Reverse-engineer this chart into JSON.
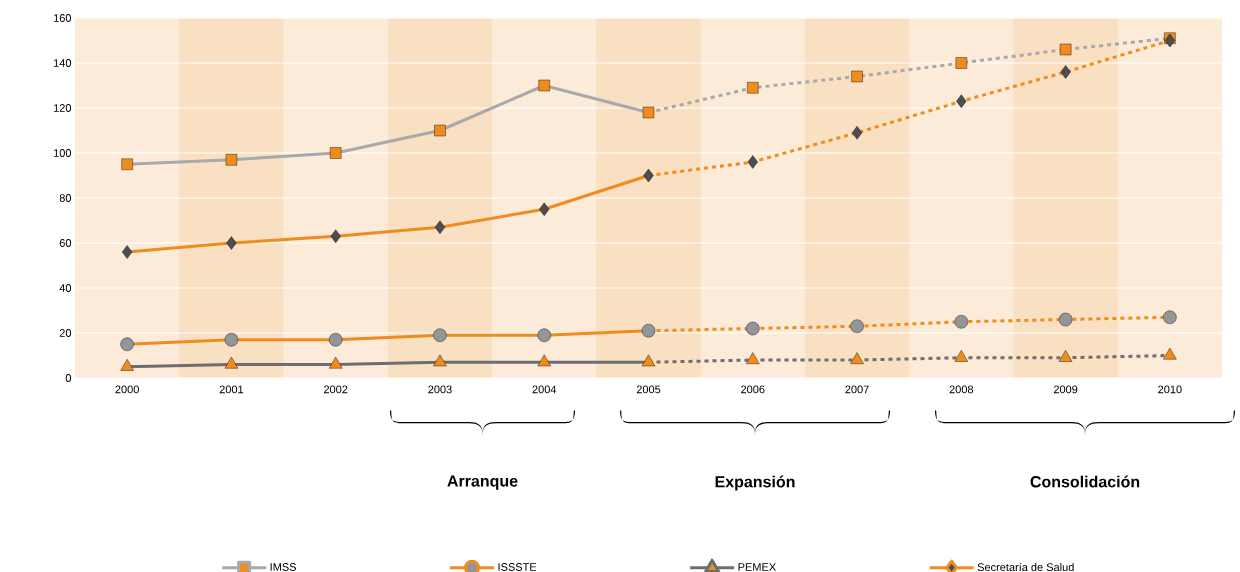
{
  "chart_data": {
    "type": "line",
    "x": [
      2000,
      2001,
      2002,
      2003,
      2004,
      2005,
      2006,
      2007,
      2008,
      2009,
      2010
    ],
    "xlim": [
      1999.5,
      2010.5
    ],
    "xticks": [
      2000,
      2001,
      2002,
      2003,
      2004,
      2005,
      2006,
      2007,
      2008,
      2009,
      2010
    ],
    "ylim": [
      0,
      160
    ],
    "yticks": [
      0,
      20,
      40,
      60,
      80,
      100,
      120,
      140,
      160
    ],
    "grid": "y",
    "legend": "bottom",
    "bands": [
      {
        "axis": "x",
        "from": 2000.5,
        "to": 2001.5,
        "color": "#fae0c2"
      },
      {
        "axis": "x",
        "from": 2002.5,
        "to": 2003.5,
        "color": "#fae0c2"
      },
      {
        "axis": "x",
        "from": 2004.5,
        "to": 2005.5,
        "color": "#fae0c2"
      },
      {
        "axis": "x",
        "from": 2006.5,
        "to": 2007.5,
        "color": "#fae0c2"
      },
      {
        "axis": "x",
        "from": 2008.5,
        "to": 2009.5,
        "color": "#fae0c2"
      }
    ],
    "annotations": [
      "Arranque",
      "Expansión",
      "Consolidación"
    ],
    "series": [
      {
        "name": "IMSS",
        "color": "#a7a9ac",
        "marker": "square",
        "line_style": "solid",
        "values": [
          95,
          97,
          100,
          110,
          130,
          118,
          null,
          null,
          null,
          null,
          null
        ],
        "colors": [
          "#f08c1e",
          "#f08c1e",
          "#f08c1e",
          "#f08c1e",
          "#f08c1e",
          "#f08c1e",
          null,
          null,
          null,
          null,
          null
        ]
      },
      {
        "color": "#a7a9ac",
        "marker": "square",
        "line_style": "dotted",
        "values": [
          null,
          null,
          null,
          null,
          null,
          118,
          129,
          134,
          140,
          146,
          151
        ],
        "colors": [
          null,
          null,
          null,
          null,
          null,
          null,
          "#f08c1e",
          "#f08c1e",
          "#f08c1e",
          "#f08c1e",
          "#f08c1e"
        ]
      },
      {
        "name": "ISSSTE",
        "color": "#f08c1e",
        "marker": "circle",
        "line_style": "solid",
        "values": [
          15,
          17,
          17,
          19,
          19,
          21,
          null,
          null,
          null,
          null,
          null
        ],
        "colors": [
          "#939598",
          "#939598",
          "#939598",
          "#939598",
          "#939598",
          "#939598",
          null,
          null,
          null,
          null,
          null
        ]
      },
      {
        "color": "#f08c1e",
        "marker": "circle",
        "line_style": "dotted",
        "values": [
          null,
          null,
          null,
          null,
          null,
          21,
          22,
          23,
          25,
          26,
          27
        ],
        "colors": [
          null,
          null,
          null,
          null,
          null,
          null,
          "#939598",
          "#939598",
          "#939598",
          "#939598",
          "#939598"
        ]
      },
      {
        "name": "PEMEX",
        "color": "#6d6e71",
        "marker": "triangle",
        "line_style": "solid",
        "values": [
          5,
          6,
          6,
          7,
          7,
          7,
          null,
          null,
          null,
          null,
          null
        ],
        "colors": [
          "#f08c1e",
          "#f08c1e",
          "#f08c1e",
          "#f08c1e",
          "#f08c1e",
          "#f08c1e",
          null,
          null,
          null,
          null,
          null
        ]
      },
      {
        "color": "#6d6e71",
        "marker": "triangle",
        "line_style": "dotted",
        "values": [
          null,
          null,
          null,
          null,
          null,
          7,
          8,
          8,
          9,
          9,
          10
        ],
        "colors": [
          null,
          null,
          null,
          null,
          null,
          null,
          "#f08c1e",
          "#f08c1e",
          "#f08c1e",
          "#f08c1e",
          "#f08c1e"
        ]
      },
      {
        "name": "Secretaría de Salud",
        "color": "#f08c1e",
        "marker": "diamond",
        "line_style": "solid",
        "values": [
          56,
          60,
          63,
          67,
          75,
          90,
          null,
          null,
          null,
          null,
          null
        ],
        "colors": [
          "#4d4d4f",
          "#4d4d4f",
          "#4d4d4f",
          "#4d4d4f",
          "#4d4d4f",
          "#4d4d4f",
          null,
          null,
          null,
          null,
          null
        ]
      },
      {
        "color": "#f08c1e",
        "marker": "diamond",
        "line_style": "dotted",
        "values": [
          null,
          null,
          null,
          null,
          null,
          90,
          96,
          109,
          123,
          136,
          150
        ],
        "colors": [
          null,
          null,
          null,
          null,
          null,
          null,
          "#4d4d4f",
          "#4d4d4f",
          "#4d4d4f",
          "#4d4d4f",
          "#4d4d4f"
        ]
      }
    ]
  }
}
